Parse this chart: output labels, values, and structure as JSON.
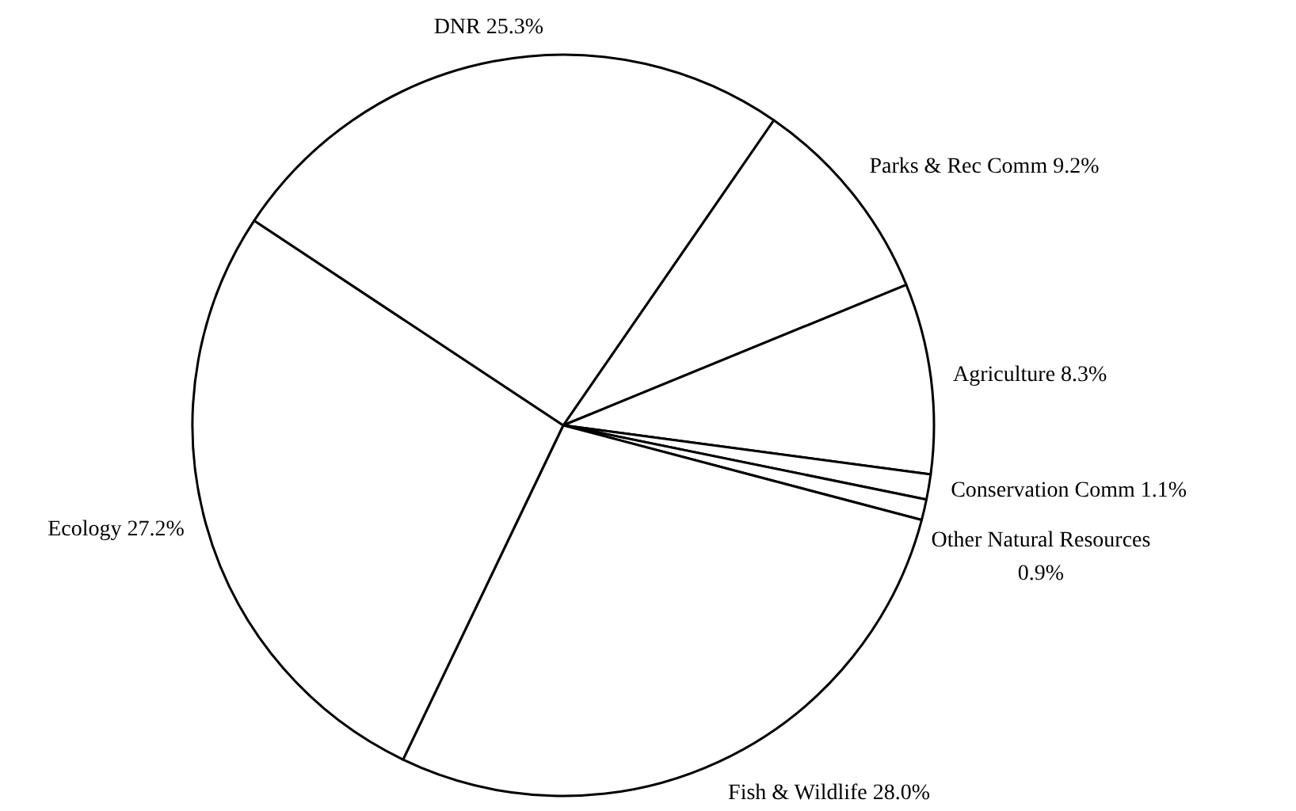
{
  "chart_data": {
    "type": "pie",
    "categories": [
      "Parks & Rec Comm",
      "Agriculture",
      "Conservation Comm",
      "Other Natural Resources",
      "Fish & Wildlife",
      "Ecology",
      "DNR"
    ],
    "values": [
      9.2,
      8.3,
      1.1,
      0.9,
      28.0,
      27.2,
      25.3
    ],
    "value_labels": [
      "9.2%",
      "8.3%",
      "1.1%",
      "0.9%",
      "28.0%",
      "27.2%",
      "25.3%"
    ],
    "colors": [
      "#ffffff",
      "#ffffff",
      "#ffffff",
      "#ffffff",
      "#ffffff",
      "#ffffff",
      "#ffffff"
    ]
  }
}
